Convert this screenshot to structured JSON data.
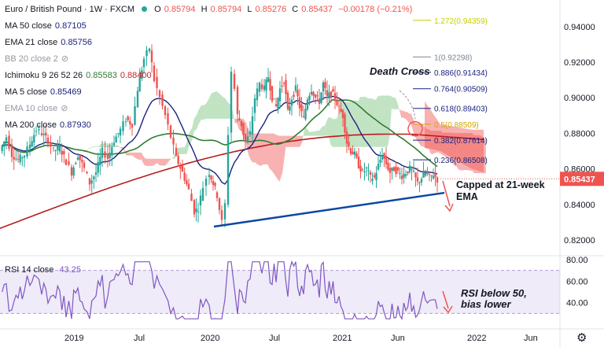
{
  "header": {
    "symbol": "Euro / British Pound · 1W · FXCM",
    "o_label": "O",
    "o_value": "0.85794",
    "h_label": "H",
    "h_value": "0.85794",
    "l_label": "L",
    "l_value": "0.85276",
    "c_label": "C",
    "c_value": "0.85437",
    "change": "−0.00178 (−0.21%)"
  },
  "indicators": [
    {
      "label": "MA 50 close",
      "values": [
        "0.87105"
      ],
      "color": "#131722"
    },
    {
      "label": "EMA 21 close",
      "values": [
        "0.85756"
      ],
      "color": "#131722"
    },
    {
      "label": "BB 20 close 2",
      "values": [],
      "color": "#9598a1"
    },
    {
      "label": "Ichimoku 9 26 52 26",
      "values": [
        "0.85583",
        "0.88400"
      ],
      "value_colors": [
        "#2e7d32",
        "#c62828"
      ],
      "color": "#131722"
    },
    {
      "label": "MA 5 close",
      "values": [
        "0.85469"
      ],
      "color": "#131722"
    },
    {
      "label": "EMA 10 close",
      "values": [],
      "color": "#9598a1"
    },
    {
      "label": "MA 200 close",
      "values": [
        "0.87930"
      ],
      "color": "#131722"
    }
  ],
  "colors": {
    "up": "#26a69a",
    "down": "#ef5350",
    "ema21": "#1a237e",
    "ma50": "#2e7d32",
    "ma200": "#b71c1c",
    "fib": "#1a237e",
    "trend": "#0d47a1",
    "rsi": "#7e57c2"
  },
  "annotations": {
    "death_cross": "Death Cross",
    "capped": "Capped at 21-week EMA",
    "capped_line1": "Capped at 21-week",
    "capped_line2": "EMA",
    "rsi_note_line1": "RSI below 50,",
    "rsi_note_line2": "bias lower"
  },
  "price_tag": "0.85437",
  "rsi": {
    "label": "RSI 14 close",
    "value": "43.25"
  },
  "chart_data": {
    "type": "candlestick",
    "title": "Euro / British Pound · 1W · FXCM",
    "x_ticks": [
      "2019",
      "Jul",
      "2020",
      "Jul",
      "2021",
      "Jun",
      "2022",
      "Jun"
    ],
    "y_ticks": [
      "0.94000",
      "0.92000",
      "0.90000",
      "0.88000",
      "0.86000",
      "0.84000",
      "0.82000"
    ],
    "ylim": [
      0.812,
      0.955
    ],
    "last_close": 0.85437,
    "fib_levels": [
      {
        "label": "1.272(0.94359)",
        "value": 0.94359
      },
      {
        "label": "1(0.92298)",
        "value": 0.92298
      },
      {
        "label": "0.886(0.91434)",
        "value": 0.91434
      },
      {
        "label": "0.764(0.90509)",
        "value": 0.90509
      },
      {
        "label": "0.618(0.89403)",
        "value": 0.89403
      },
      {
        "label": "0.5(0.88509)",
        "value": 0.88509
      },
      {
        "label": "0.382(0.87614)",
        "value": 0.87614
      },
      {
        "label": "0.236(0.86508)",
        "value": 0.86508
      }
    ],
    "series": [
      {
        "name": "MA 50 close",
        "last": 0.87105
      },
      {
        "name": "EMA 21 close",
        "last": 0.85756
      },
      {
        "name": "MA 200 close",
        "last": 0.8793
      },
      {
        "name": "MA 5 close",
        "last": 0.85469
      }
    ],
    "trendline": {
      "from_date": "2020-04",
      "from_value": 0.8275,
      "to_date": "2021-10",
      "to_value": 0.8465
    },
    "rsi": {
      "ylim": [
        20,
        80
      ],
      "y_ticks": [
        "80.00",
        "60.00",
        "40.00"
      ],
      "last": 43.25
    }
  }
}
